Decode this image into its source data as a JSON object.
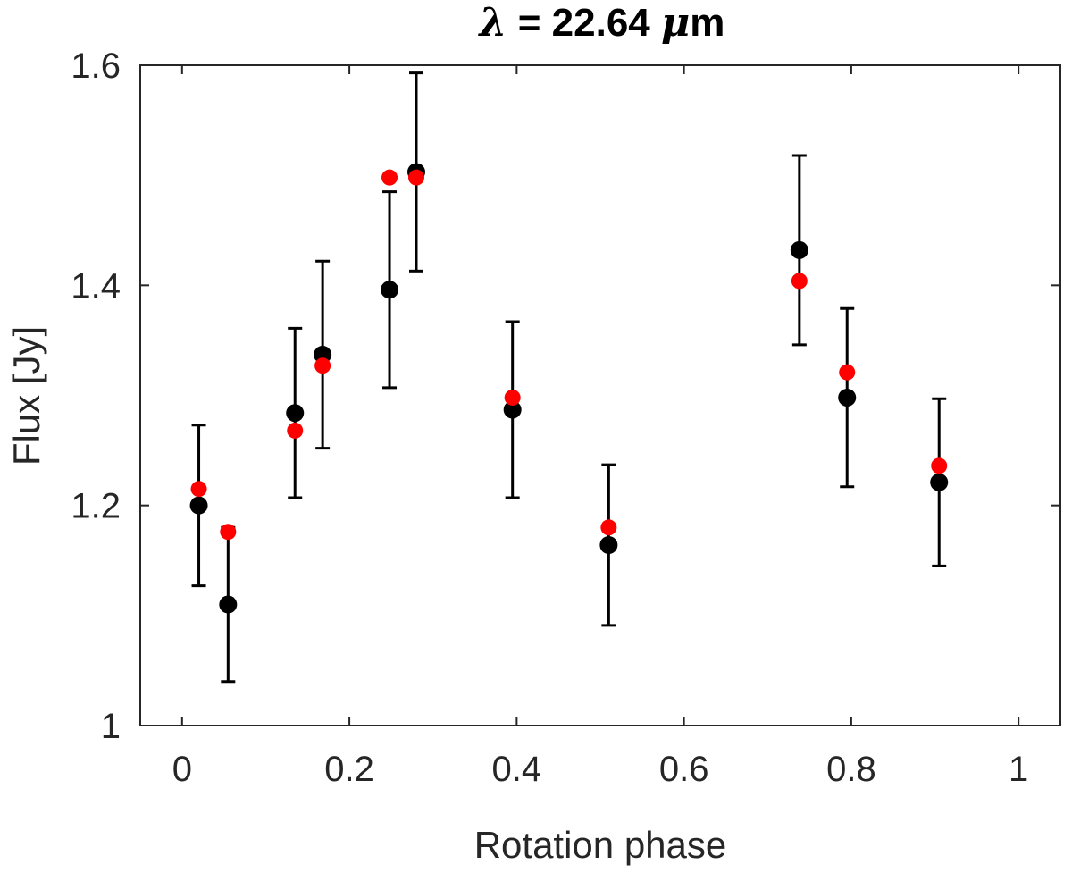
{
  "chart_data": {
    "type": "scatter",
    "title_symbol": "λ",
    "title_rest": " = 22.64 ",
    "title_unit_symbol": "μ",
    "title_unit": "m",
    "xlabel": "Rotation phase",
    "ylabel": "Flux [Jy]",
    "xlim": [
      -0.05,
      1.05
    ],
    "ylim": [
      1.0,
      1.6
    ],
    "xticks": [
      0,
      0.2,
      0.4,
      0.6,
      0.8,
      1
    ],
    "xtick_labels": [
      "0",
      "0.2",
      "0.4",
      "0.6",
      "0.8",
      "1"
    ],
    "yticks": [
      1.0,
      1.2,
      1.4,
      1.6
    ],
    "ytick_labels": [
      "1",
      "1.2",
      "1.4",
      "1.6"
    ],
    "grid": false,
    "series": [
      {
        "name": "observed",
        "color": "#000000",
        "x": [
          0.02,
          0.055,
          0.135,
          0.168,
          0.248,
          0.28,
          0.395,
          0.51,
          0.738,
          0.795,
          0.905
        ],
        "y": [
          1.2,
          1.11,
          1.284,
          1.337,
          1.396,
          1.503,
          1.287,
          1.164,
          1.432,
          1.298,
          1.221
        ],
        "yerr": [
          0.073,
          0.07,
          0.077,
          0.085,
          0.089,
          0.09,
          0.08,
          0.073,
          0.086,
          0.081,
          0.076
        ]
      },
      {
        "name": "model",
        "color": "#ff0000",
        "x": [
          0.02,
          0.055,
          0.135,
          0.168,
          0.248,
          0.28,
          0.395,
          0.51,
          0.738,
          0.795,
          0.905
        ],
        "y": [
          1.215,
          1.176,
          1.268,
          1.327,
          1.498,
          1.498,
          1.298,
          1.18,
          1.404,
          1.321,
          1.236
        ]
      }
    ]
  }
}
